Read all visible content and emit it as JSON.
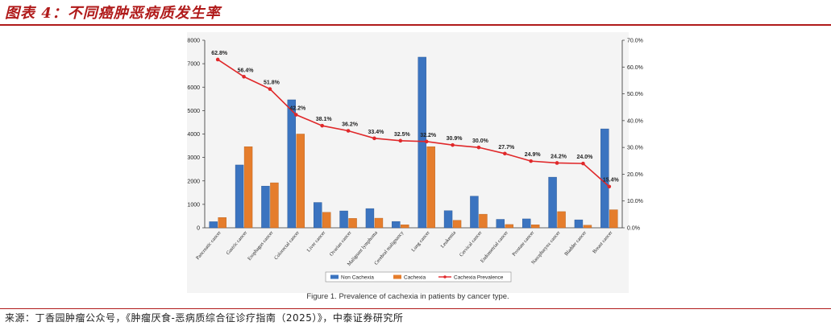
{
  "page": {
    "title": "图表 4：不同癌肿恶病质发生率",
    "source": "来源：丁香园肿瘤公众号，《肿瘤厌食-恶病质综合征诊疗指南（2025）》，中泰证券研究所"
  },
  "colors": {
    "accent": "#b01a1a",
    "non_cachexia": "#3b74c0",
    "cachexia": "#e57d2c",
    "prevalence": "#e0282a"
  },
  "chart_data": {
    "type": "bar",
    "caption": "Figure 1. Prevalence of cachexia in patients by cancer type.",
    "categories": [
      "Pancreatic cancer",
      "Gastric cancer",
      "Esophagus cancer",
      "Colorectal cancer",
      "Liver cancer",
      "Ovarian cancer",
      "Malignant lymphoma",
      "Cerebral malignancy",
      "Lung cancer",
      "Leukemia",
      "Cervical cancer",
      "Endometrial cancer",
      "Prostate cancer",
      "Nasopharynx cancer",
      "Bladder cancer",
      "Breast cancer"
    ],
    "series": [
      {
        "name": "Non Cachexia",
        "axis": "left",
        "values": [
          260,
          2680,
          1780,
          5460,
          1080,
          720,
          820,
          270,
          7280,
          730,
          1350,
          360,
          380,
          2160,
          340,
          4220
        ]
      },
      {
        "name": "Cachexia",
        "axis": "left",
        "values": [
          440,
          3460,
          1920,
          4000,
          660,
          400,
          410,
          130,
          3460,
          320,
          580,
          140,
          130,
          690,
          110,
          770
        ]
      },
      {
        "name": "Cachexia Prevalence",
        "axis": "right",
        "type": "line",
        "values": [
          62.8,
          56.4,
          51.8,
          42.2,
          38.1,
          36.2,
          33.4,
          32.5,
          32.2,
          30.9,
          30.0,
          27.7,
          24.9,
          24.2,
          24.0,
          15.4
        ],
        "labels": [
          "62.8%",
          "56.4%",
          "51.8%",
          "42.2%",
          "38.1%",
          "36.2%",
          "33.4%",
          "32.5%",
          "32.2%",
          "30.9%",
          "30.0%",
          "27.7%",
          "24.9%",
          "24.2%",
          "24.0%",
          "15.4%"
        ]
      }
    ],
    "y_left": {
      "min": 0,
      "max": 8000,
      "ticks": [
        "0",
        "1000",
        "2000",
        "3000",
        "4000",
        "5000",
        "6000",
        "7000",
        "8000"
      ]
    },
    "y_right": {
      "min": 0,
      "max": 70,
      "ticks": [
        "0.0%",
        "10.0%",
        "20.0%",
        "30.0%",
        "40.0%",
        "50.0%",
        "60.0%",
        "70.0%"
      ]
    },
    "legend": {
      "position": "bottom",
      "items": [
        "Non Cachexia",
        "Cachexia",
        "Cachexia Prevalence"
      ]
    },
    "grid": false
  }
}
